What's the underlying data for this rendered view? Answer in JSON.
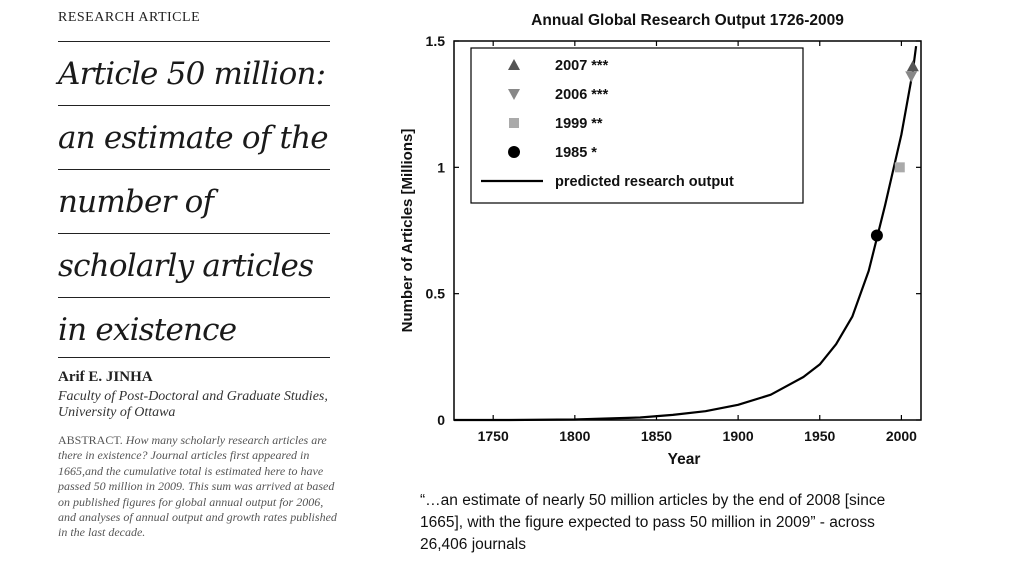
{
  "article": {
    "kicker": "RESEARCH ARTICLE",
    "title_lines": [
      "Article 50 million:",
      "an estimate of the",
      "number of",
      "scholarly articles",
      "in existence"
    ],
    "author": "Arif E. JINHA",
    "affiliation": "Faculty of Post-Doctoral and Graduate Studies, University of Ottawa",
    "abstract_lead": "ABSTRACT.",
    "abstract_body": "How many scholarly research articles are there in existence? Journal articles first appeared in 1665,and the cumulative total is estimated here to have passed 50 million in 2009. This sum was arrived at based on published figures for global annual output for 2006, and analyses of annual output and growth rates published in the last decade."
  },
  "quote": "“…an estimate of nearly 50 million articles by the end of 2008 [since 1665], with the figure expected to pass 50 million in 2009” - across 26,406 journals",
  "chart_data": {
    "type": "line",
    "title": "Annual Global Research Output 1726-2009",
    "xlabel": "Year",
    "ylabel": "Number of Articles [Millions]",
    "xlim": [
      1726,
      2012
    ],
    "ylim": [
      0,
      1.5
    ],
    "xticks": [
      1750,
      1800,
      1850,
      1900,
      1950,
      2000
    ],
    "yticks": [
      0,
      0.5,
      1,
      1.5
    ],
    "ytick_labels": [
      "0",
      "0.5",
      "1",
      "1.5"
    ],
    "grid": false,
    "legend_position": "top-left",
    "series": [
      {
        "name": "predicted research output",
        "kind": "line",
        "color": "#000000",
        "x": [
          1726,
          1760,
          1800,
          1840,
          1860,
          1880,
          1900,
          1920,
          1940,
          1950,
          1960,
          1970,
          1980,
          1985,
          1990,
          2000,
          2007,
          2009
        ],
        "y": [
          0.0,
          0.0,
          0.002,
          0.01,
          0.02,
          0.035,
          0.06,
          0.1,
          0.17,
          0.22,
          0.3,
          0.41,
          0.59,
          0.72,
          0.85,
          1.13,
          1.38,
          1.48
        ]
      },
      {
        "name": "2007 ***",
        "kind": "marker",
        "marker": "triangle-up",
        "color": "#555555",
        "x": [
          2007
        ],
        "y": [
          1.4
        ]
      },
      {
        "name": "2006 ***",
        "kind": "marker",
        "marker": "triangle-down",
        "color": "#888888",
        "x": [
          2006
        ],
        "y": [
          1.36
        ]
      },
      {
        "name": "1999 **",
        "kind": "marker",
        "marker": "square",
        "color": "#aaaaaa",
        "x": [
          1999
        ],
        "y": [
          1.0
        ]
      },
      {
        "name": "1985 *",
        "kind": "marker",
        "marker": "circle",
        "color": "#000000",
        "x": [
          1985
        ],
        "y": [
          0.73
        ]
      }
    ]
  }
}
